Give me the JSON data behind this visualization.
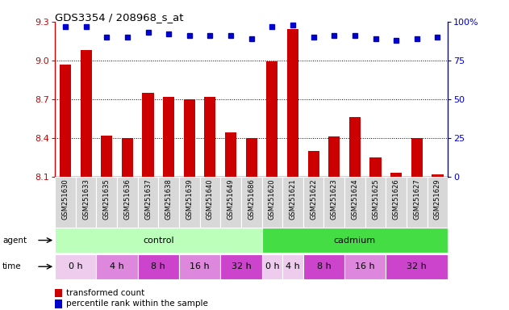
{
  "title": "GDS3354 / 208968_s_at",
  "samples": [
    "GSM251630",
    "GSM251633",
    "GSM251635",
    "GSM251636",
    "GSM251637",
    "GSM251638",
    "GSM251639",
    "GSM251640",
    "GSM251649",
    "GSM251686",
    "GSM251620",
    "GSM251621",
    "GSM251622",
    "GSM251623",
    "GSM251624",
    "GSM251625",
    "GSM251626",
    "GSM251627",
    "GSM251629"
  ],
  "bar_values": [
    8.97,
    9.08,
    8.42,
    8.4,
    8.75,
    8.72,
    8.7,
    8.72,
    8.44,
    8.4,
    8.99,
    9.24,
    8.3,
    8.41,
    8.56,
    8.25,
    8.13,
    8.4,
    8.12
  ],
  "percentile_values": [
    97,
    97,
    90,
    90,
    93,
    92,
    91,
    91,
    91,
    89,
    97,
    98,
    90,
    91,
    91,
    89,
    88,
    89,
    90
  ],
  "bar_color": "#cc0000",
  "dot_color": "#0000cc",
  "ylim_left": [
    8.1,
    9.3
  ],
  "ylim_right": [
    0,
    100
  ],
  "yticks_left": [
    8.1,
    8.4,
    8.7,
    9.0,
    9.3
  ],
  "yticks_right": [
    0,
    25,
    50,
    75,
    100
  ],
  "agent_blocks": [
    {
      "label": "control",
      "start": 0,
      "end": 10,
      "color": "#bbffbb"
    },
    {
      "label": "cadmium",
      "start": 10,
      "end": 19,
      "color": "#44dd44"
    }
  ],
  "time_blocks": [
    {
      "label": "0 h",
      "start": 0,
      "end": 2,
      "color": "#eeccee"
    },
    {
      "label": "4 h",
      "start": 2,
      "end": 4,
      "color": "#dd88dd"
    },
    {
      "label": "8 h",
      "start": 4,
      "end": 6,
      "color": "#cc44cc"
    },
    {
      "label": "16 h",
      "start": 6,
      "end": 8,
      "color": "#dd88dd"
    },
    {
      "label": "32 h",
      "start": 8,
      "end": 10,
      "color": "#cc44cc"
    },
    {
      "label": "0 h",
      "start": 10,
      "end": 11,
      "color": "#eeccee"
    },
    {
      "label": "4 h",
      "start": 11,
      "end": 12,
      "color": "#eeccee"
    },
    {
      "label": "8 h",
      "start": 12,
      "end": 14,
      "color": "#cc44cc"
    },
    {
      "label": "16 h",
      "start": 14,
      "end": 16,
      "color": "#dd88dd"
    },
    {
      "label": "32 h",
      "start": 16,
      "end": 19,
      "color": "#cc44cc"
    }
  ],
  "legend_items": [
    {
      "color": "#cc0000",
      "label": "transformed count"
    },
    {
      "color": "#0000cc",
      "label": "percentile rank within the sample"
    }
  ],
  "xtick_bg": "#d8d8d8",
  "background_color": "#ffffff"
}
